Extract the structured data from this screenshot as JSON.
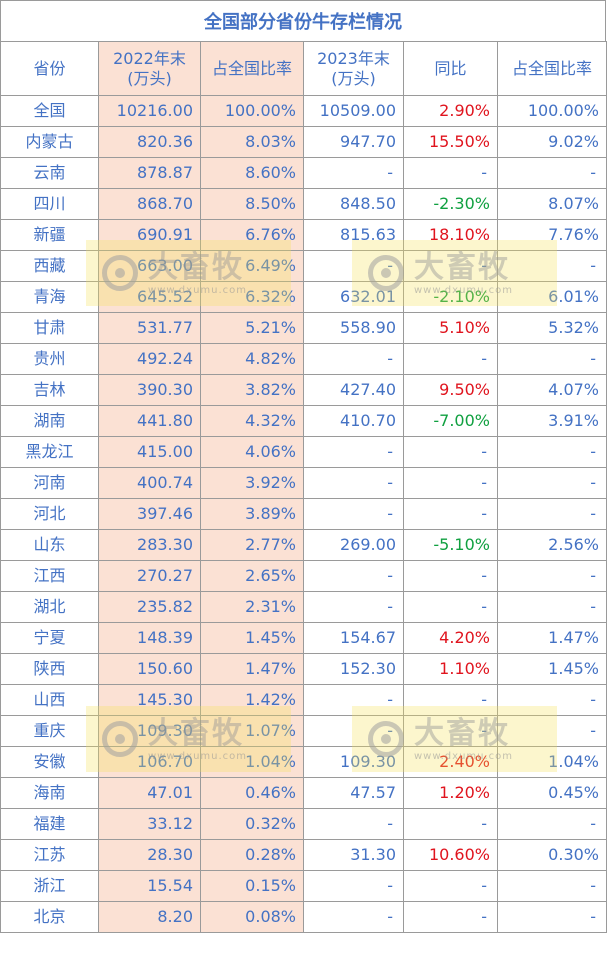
{
  "title": "全国部分省份牛存栏情况",
  "headers": [
    "省份",
    "2022年末\n(万头)",
    "占全国比率",
    "2023年末\n(万头)",
    "同比",
    "占全国比率"
  ],
  "rows": [
    {
      "province": "全国",
      "y2022": "10216.00",
      "share2022": "100.00%",
      "y2023": "10509.00",
      "yoy": "2.90%",
      "share2023": "100.00%",
      "trend": "up"
    },
    {
      "province": "内蒙古",
      "y2022": "820.36",
      "share2022": "8.03%",
      "y2023": "947.70",
      "yoy": "15.50%",
      "share2023": "9.02%",
      "trend": "up"
    },
    {
      "province": "云南",
      "y2022": "878.87",
      "share2022": "8.60%",
      "y2023": "-",
      "yoy": "-",
      "share2023": "-",
      "trend": "none"
    },
    {
      "province": "四川",
      "y2022": "868.70",
      "share2022": "8.50%",
      "y2023": "848.50",
      "yoy": "-2.30%",
      "share2023": "8.07%",
      "trend": "down"
    },
    {
      "province": "新疆",
      "y2022": "690.91",
      "share2022": "6.76%",
      "y2023": "815.63",
      "yoy": "18.10%",
      "share2023": "7.76%",
      "trend": "up"
    },
    {
      "province": "西藏",
      "y2022": "663.00",
      "share2022": "6.49%",
      "y2023": "-",
      "yoy": "-",
      "share2023": "-",
      "trend": "none"
    },
    {
      "province": "青海",
      "y2022": "645.52",
      "share2022": "6.32%",
      "y2023": "632.01",
      "yoy": "-2.10%",
      "share2023": "6.01%",
      "trend": "down"
    },
    {
      "province": "甘肃",
      "y2022": "531.77",
      "share2022": "5.21%",
      "y2023": "558.90",
      "yoy": "5.10%",
      "share2023": "5.32%",
      "trend": "up"
    },
    {
      "province": "贵州",
      "y2022": "492.24",
      "share2022": "4.82%",
      "y2023": "-",
      "yoy": "-",
      "share2023": "-",
      "trend": "none"
    },
    {
      "province": "吉林",
      "y2022": "390.30",
      "share2022": "3.82%",
      "y2023": "427.40",
      "yoy": "9.50%",
      "share2023": "4.07%",
      "trend": "up"
    },
    {
      "province": "湖南",
      "y2022": "441.80",
      "share2022": "4.32%",
      "y2023": "410.70",
      "yoy": "-7.00%",
      "share2023": "3.91%",
      "trend": "down"
    },
    {
      "province": "黑龙江",
      "y2022": "415.00",
      "share2022": "4.06%",
      "y2023": "-",
      "yoy": "-",
      "share2023": "-",
      "trend": "none"
    },
    {
      "province": "河南",
      "y2022": "400.74",
      "share2022": "3.92%",
      "y2023": "-",
      "yoy": "-",
      "share2023": "-",
      "trend": "none"
    },
    {
      "province": "河北",
      "y2022": "397.46",
      "share2022": "3.89%",
      "y2023": "-",
      "yoy": "-",
      "share2023": "-",
      "trend": "none"
    },
    {
      "province": "山东",
      "y2022": "283.30",
      "share2022": "2.77%",
      "y2023": "269.00",
      "yoy": "-5.10%",
      "share2023": "2.56%",
      "trend": "down"
    },
    {
      "province": "江西",
      "y2022": "270.27",
      "share2022": "2.65%",
      "y2023": "-",
      "yoy": "-",
      "share2023": "-",
      "trend": "none"
    },
    {
      "province": "湖北",
      "y2022": "235.82",
      "share2022": "2.31%",
      "y2023": "-",
      "yoy": "-",
      "share2023": "-",
      "trend": "none"
    },
    {
      "province": "宁夏",
      "y2022": "148.39",
      "share2022": "1.45%",
      "y2023": "154.67",
      "yoy": "4.20%",
      "share2023": "1.47%",
      "trend": "up"
    },
    {
      "province": "陕西",
      "y2022": "150.60",
      "share2022": "1.47%",
      "y2023": "152.30",
      "yoy": "1.10%",
      "share2023": "1.45%",
      "trend": "up"
    },
    {
      "province": "山西",
      "y2022": "145.30",
      "share2022": "1.42%",
      "y2023": "-",
      "yoy": "-",
      "share2023": "-",
      "trend": "none"
    },
    {
      "province": "重庆",
      "y2022": "109.30",
      "share2022": "1.07%",
      "y2023": "-",
      "yoy": "-",
      "share2023": "-",
      "trend": "none"
    },
    {
      "province": "安徽",
      "y2022": "106.70",
      "share2022": "1.04%",
      "y2023": "109.30",
      "yoy": "2.40%",
      "share2023": "1.04%",
      "trend": "up"
    },
    {
      "province": "海南",
      "y2022": "47.01",
      "share2022": "0.46%",
      "y2023": "47.57",
      "yoy": "1.20%",
      "share2023": "0.45%",
      "trend": "up"
    },
    {
      "province": "福建",
      "y2022": "33.12",
      "share2022": "0.32%",
      "y2023": "-",
      "yoy": "-",
      "share2023": "-",
      "trend": "none"
    },
    {
      "province": "江苏",
      "y2022": "28.30",
      "share2022": "0.28%",
      "y2023": "31.30",
      "yoy": "10.60%",
      "share2023": "0.30%",
      "trend": "up"
    },
    {
      "province": "浙江",
      "y2022": "15.54",
      "share2022": "0.15%",
      "y2023": "-",
      "yoy": "-",
      "share2023": "-",
      "trend": "none"
    },
    {
      "province": "北京",
      "y2022": "8.20",
      "share2022": "0.08%",
      "y2023": "-",
      "yoy": "-",
      "share2023": "-",
      "trend": "none"
    }
  ],
  "watermark": {
    "text": "大畜牧",
    "url": "www.dxumu.com",
    "icon": "camera-lens-icon"
  },
  "colors": {
    "text": "#4472c4",
    "highlight": "#fbe1d4",
    "up": "#e0141e",
    "down": "#10a040"
  }
}
